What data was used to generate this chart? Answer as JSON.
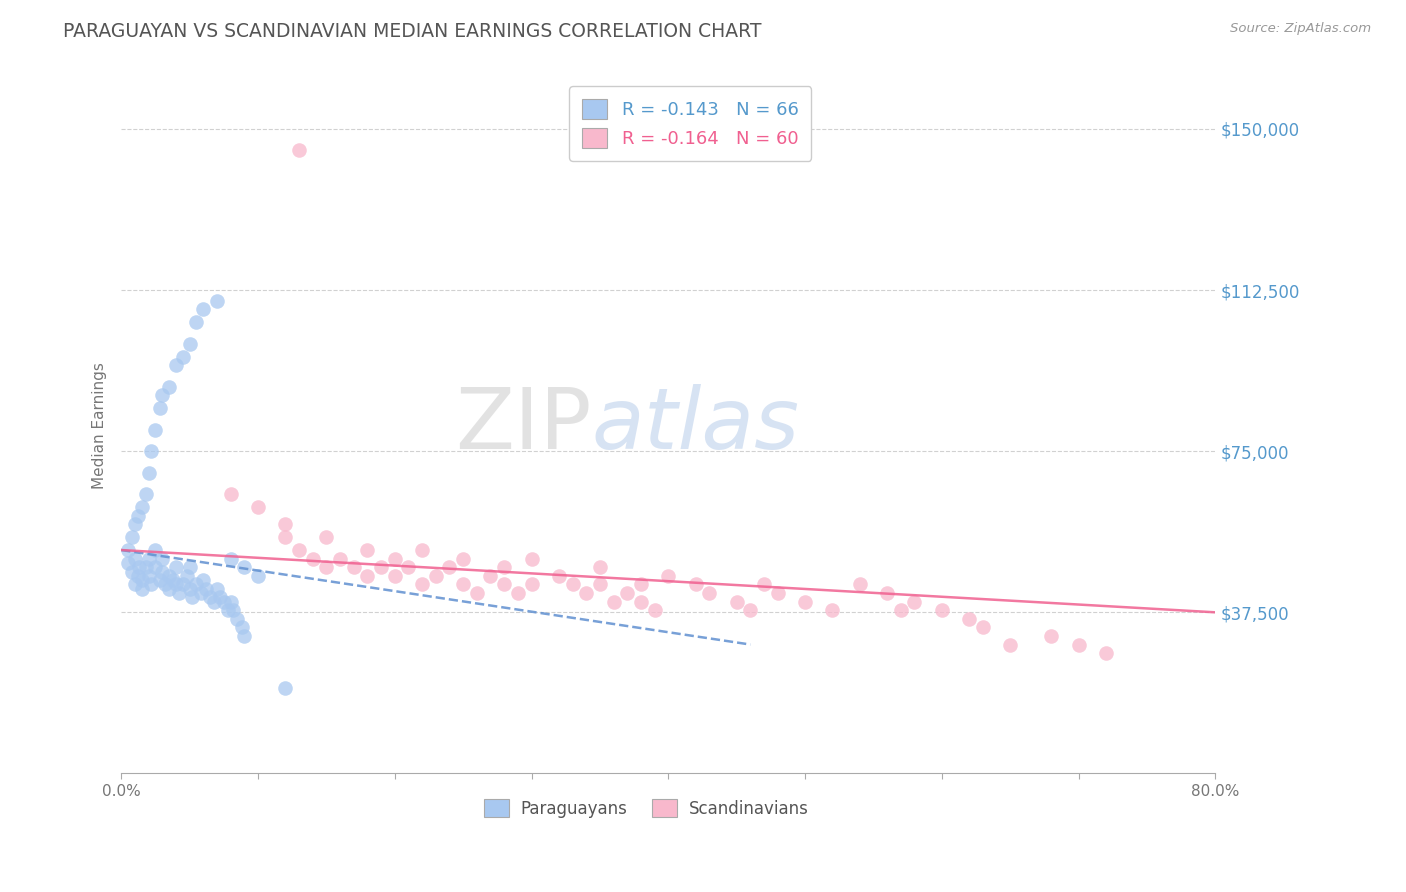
{
  "title": "PARAGUAYAN VS SCANDINAVIAN MEDIAN EARNINGS CORRELATION CHART",
  "source": "Source: ZipAtlas.com",
  "ylabel": "Median Earnings",
  "xlim": [
    0.0,
    0.8
  ],
  "ylim": [
    0,
    162000
  ],
  "yticks": [
    37500,
    75000,
    112500,
    150000
  ],
  "ytick_labels": [
    "$37,500",
    "$75,000",
    "$112,500",
    "$150,000"
  ],
  "xticks": [
    0.0,
    0.1,
    0.2,
    0.3,
    0.4,
    0.5,
    0.6,
    0.7,
    0.8
  ],
  "xtick_labels": [
    "0.0%",
    "",
    "",
    "",
    "",
    "",
    "",
    "",
    "80.0%"
  ],
  "paraguayan_color": "#a8c8f0",
  "scandinavian_color": "#f8b8cc",
  "trend_paraguayan_color": "#6090d0",
  "trend_scandinavian_color": "#f06090",
  "R_paraguayan": -0.143,
  "N_paraguayan": 66,
  "R_scandinavian": -0.164,
  "N_scandinavian": 60,
  "watermark_zip": "ZIP",
  "watermark_atlas": "atlas",
  "background_color": "#ffffff",
  "grid_color": "#cccccc",
  "title_color": "#555555",
  "axis_label_color": "#777777",
  "ytick_color": "#5599cc",
  "legend_blue_text": "R = -0.143   N = 66",
  "legend_pink_text": "R = -0.164   N = 60",
  "paraguayan_x": [
    0.005,
    0.008,
    0.01,
    0.01,
    0.012,
    0.013,
    0.015,
    0.015,
    0.018,
    0.02,
    0.02,
    0.022,
    0.025,
    0.025,
    0.028,
    0.03,
    0.03,
    0.032,
    0.035,
    0.035,
    0.038,
    0.04,
    0.04,
    0.042,
    0.045,
    0.048,
    0.05,
    0.05,
    0.052,
    0.055,
    0.058,
    0.06,
    0.062,
    0.065,
    0.068,
    0.07,
    0.072,
    0.075,
    0.078,
    0.08,
    0.082,
    0.085,
    0.088,
    0.09,
    0.005,
    0.008,
    0.01,
    0.012,
    0.015,
    0.018,
    0.02,
    0.022,
    0.025,
    0.028,
    0.03,
    0.035,
    0.04,
    0.045,
    0.05,
    0.055,
    0.06,
    0.07,
    0.08,
    0.09,
    0.1,
    0.12
  ],
  "paraguayan_y": [
    49000,
    47000,
    50000,
    44000,
    46000,
    48000,
    45000,
    43000,
    48000,
    50000,
    46000,
    44000,
    52000,
    48000,
    45000,
    50000,
    47000,
    44000,
    46000,
    43000,
    45000,
    48000,
    44000,
    42000,
    44000,
    46000,
    48000,
    43000,
    41000,
    44000,
    42000,
    45000,
    43000,
    41000,
    40000,
    43000,
    41000,
    40000,
    38000,
    40000,
    38000,
    36000,
    34000,
    32000,
    52000,
    55000,
    58000,
    60000,
    62000,
    65000,
    70000,
    75000,
    80000,
    85000,
    88000,
    90000,
    95000,
    97000,
    100000,
    105000,
    108000,
    110000,
    50000,
    48000,
    46000,
    20000
  ],
  "scandinavian_x": [
    0.08,
    0.1,
    0.12,
    0.12,
    0.13,
    0.14,
    0.15,
    0.15,
    0.16,
    0.17,
    0.18,
    0.18,
    0.19,
    0.2,
    0.2,
    0.21,
    0.22,
    0.22,
    0.23,
    0.24,
    0.25,
    0.25,
    0.26,
    0.27,
    0.28,
    0.28,
    0.29,
    0.3,
    0.3,
    0.32,
    0.33,
    0.34,
    0.35,
    0.35,
    0.36,
    0.37,
    0.38,
    0.38,
    0.39,
    0.4,
    0.42,
    0.43,
    0.45,
    0.46,
    0.47,
    0.48,
    0.5,
    0.52,
    0.54,
    0.56,
    0.57,
    0.58,
    0.6,
    0.62,
    0.63,
    0.65,
    0.68,
    0.7,
    0.72,
    0.13
  ],
  "scandinavian_y": [
    65000,
    62000,
    58000,
    55000,
    52000,
    50000,
    48000,
    55000,
    50000,
    48000,
    52000,
    46000,
    48000,
    50000,
    46000,
    48000,
    52000,
    44000,
    46000,
    48000,
    50000,
    44000,
    42000,
    46000,
    44000,
    48000,
    42000,
    50000,
    44000,
    46000,
    44000,
    42000,
    48000,
    44000,
    40000,
    42000,
    44000,
    40000,
    38000,
    46000,
    44000,
    42000,
    40000,
    38000,
    44000,
    42000,
    40000,
    38000,
    44000,
    42000,
    38000,
    40000,
    38000,
    36000,
    34000,
    30000,
    32000,
    30000,
    28000,
    145000
  ],
  "trend_par_x0": 0.0,
  "trend_par_x1": 0.46,
  "trend_par_y0": 52000,
  "trend_par_y1": 30000,
  "trend_scan_x0": 0.0,
  "trend_scan_x1": 0.8,
  "trend_scan_y0": 52000,
  "trend_scan_y1": 37500
}
